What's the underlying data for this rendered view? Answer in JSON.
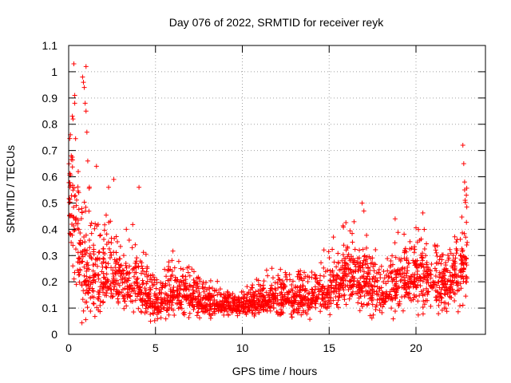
{
  "chart_data": {
    "type": "scatter",
    "title": "Day 076 of 2022, SRMTID for receiver reyk",
    "xlabel": "GPS time / hours",
    "ylabel": "SRMTID / TECUs",
    "xlim": [
      0,
      24
    ],
    "ylim": [
      0,
      1.1
    ],
    "xticks": [
      0,
      5,
      10,
      15,
      20
    ],
    "yticks": [
      0,
      0.1,
      0.2,
      0.3,
      0.4,
      0.5,
      0.6,
      0.7,
      0.8,
      0.9,
      1,
      1.1
    ],
    "xtick_labels": [
      "0",
      "5",
      "10",
      "15",
      "20"
    ],
    "ytick_labels": [
      "0",
      "0.1",
      "0.2",
      "0.3",
      "0.4",
      "0.5",
      "0.6",
      "0.7",
      "0.8",
      "0.9",
      "1",
      "1.1"
    ],
    "grid": true,
    "marker": "+",
    "marker_color": "#ff0000",
    "estimated_point_count": 2400,
    "series": [
      {
        "name": "SRMTID",
        "profile": [
          {
            "hour": 0.0,
            "center": 0.55,
            "spread": 0.18
          },
          {
            "hour": 0.5,
            "center": 0.35,
            "spread": 0.16
          },
          {
            "hour": 1.0,
            "center": 0.25,
            "spread": 0.14
          },
          {
            "hour": 2.0,
            "center": 0.22,
            "spread": 0.12
          },
          {
            "hour": 3.0,
            "center": 0.2,
            "spread": 0.09
          },
          {
            "hour": 4.0,
            "center": 0.18,
            "spread": 0.09
          },
          {
            "hour": 5.0,
            "center": 0.12,
            "spread": 0.05
          },
          {
            "hour": 6.0,
            "center": 0.17,
            "spread": 0.08
          },
          {
            "hour": 7.0,
            "center": 0.15,
            "spread": 0.06
          },
          {
            "hour": 8.0,
            "center": 0.12,
            "spread": 0.04
          },
          {
            "hour": 9.0,
            "center": 0.11,
            "spread": 0.03
          },
          {
            "hour": 10.0,
            "center": 0.11,
            "spread": 0.03
          },
          {
            "hour": 11.0,
            "center": 0.12,
            "spread": 0.04
          },
          {
            "hour": 12.0,
            "center": 0.14,
            "spread": 0.05
          },
          {
            "hour": 13.0,
            "center": 0.13,
            "spread": 0.05
          },
          {
            "hour": 14.0,
            "center": 0.14,
            "spread": 0.05
          },
          {
            "hour": 15.0,
            "center": 0.16,
            "spread": 0.06
          },
          {
            "hour": 16.0,
            "center": 0.22,
            "spread": 0.08
          },
          {
            "hour": 17.0,
            "center": 0.2,
            "spread": 0.08
          },
          {
            "hour": 18.0,
            "center": 0.16,
            "spread": 0.06
          },
          {
            "hour": 19.0,
            "center": 0.18,
            "spread": 0.07
          },
          {
            "hour": 20.0,
            "center": 0.22,
            "spread": 0.09
          },
          {
            "hour": 21.0,
            "center": 0.2,
            "spread": 0.08
          },
          {
            "hour": 22.0,
            "center": 0.18,
            "spread": 0.07
          },
          {
            "hour": 22.8,
            "center": 0.3,
            "spread": 0.12
          }
        ],
        "notable_points": [
          {
            "x": 0.1,
            "y": 0.76
          },
          {
            "x": 0.15,
            "y": 0.68
          },
          {
            "x": 0.25,
            "y": 0.82
          },
          {
            "x": 0.3,
            "y": 1.03
          },
          {
            "x": 0.35,
            "y": 0.91
          },
          {
            "x": 0.35,
            "y": 0.88
          },
          {
            "x": 0.55,
            "y": 0.62
          },
          {
            "x": 0.8,
            "y": 0.98
          },
          {
            "x": 0.85,
            "y": 0.96
          },
          {
            "x": 0.9,
            "y": 0.94
          },
          {
            "x": 0.95,
            "y": 0.88
          },
          {
            "x": 1.0,
            "y": 1.02
          },
          {
            "x": 1.0,
            "y": 0.85
          },
          {
            "x": 1.05,
            "y": 0.77
          },
          {
            "x": 1.1,
            "y": 0.66
          },
          {
            "x": 1.6,
            "y": 0.64
          },
          {
            "x": 2.3,
            "y": 0.56
          },
          {
            "x": 2.6,
            "y": 0.59
          },
          {
            "x": 4.05,
            "y": 0.56
          },
          {
            "x": 16.9,
            "y": 0.5
          },
          {
            "x": 17.0,
            "y": 0.47
          },
          {
            "x": 18.8,
            "y": 0.44
          },
          {
            "x": 22.7,
            "y": 0.72
          },
          {
            "x": 22.75,
            "y": 0.65
          },
          {
            "x": 22.8,
            "y": 0.58
          },
          {
            "x": 22.8,
            "y": 0.55
          },
          {
            "x": 22.9,
            "y": 0.53
          }
        ]
      }
    ]
  }
}
